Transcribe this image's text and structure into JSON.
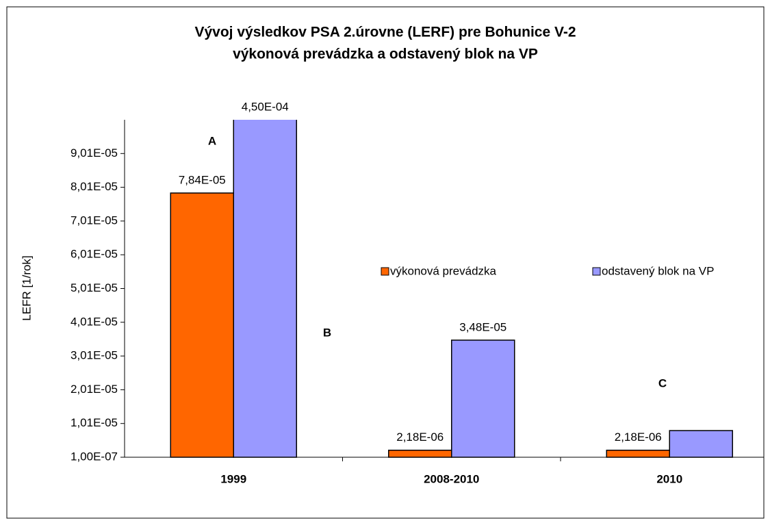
{
  "chart_data": {
    "type": "bar",
    "title": "Vývoj výsledkov PSA 2.úrovne (LERF) pre Bohunice V-2",
    "subtitle": "výkonová prevádzka a odstavený blok na VP",
    "y_label": "LEFR  [1/rok]",
    "categories": [
      "1999",
      "2008-2010",
      "2010"
    ],
    "series": [
      {
        "name": "výkonová prevádzka",
        "color": "#ff6600",
        "values": [
          7.84e-05,
          2.18e-06,
          2.18e-06
        ],
        "value_labels": [
          "7,84E-05",
          "2,18E-06",
          "2,18E-06"
        ]
      },
      {
        "name": "odstavený blok na VP",
        "color": "#9999ff",
        "values": [
          0.00045,
          3.48e-05,
          8e-06
        ],
        "value_labels": [
          "4,50E-04",
          "3,48E-05",
          null
        ]
      }
    ],
    "annotations": [
      "A",
      "B",
      "C"
    ],
    "ylim": [
      1e-07,
      0.0001001
    ],
    "yticks": [
      {
        "value": 1e-07,
        "label": "1,00E-07"
      },
      {
        "value": 1.01e-05,
        "label": "1,01E-05"
      },
      {
        "value": 2.01e-05,
        "label": "2,01E-05"
      },
      {
        "value": 3.01e-05,
        "label": "3,01E-05"
      },
      {
        "value": 4.01e-05,
        "label": "4,01E-05"
      },
      {
        "value": 5.01e-05,
        "label": "5,01E-05"
      },
      {
        "value": 6.01e-05,
        "label": "6,01E-05"
      },
      {
        "value": 7.01e-05,
        "label": "7,01E-05"
      },
      {
        "value": 8.01e-05,
        "label": "8,01E-05"
      },
      {
        "value": 9.01e-05,
        "label": "9,01E-05"
      }
    ],
    "grid": false,
    "legend": "right"
  }
}
